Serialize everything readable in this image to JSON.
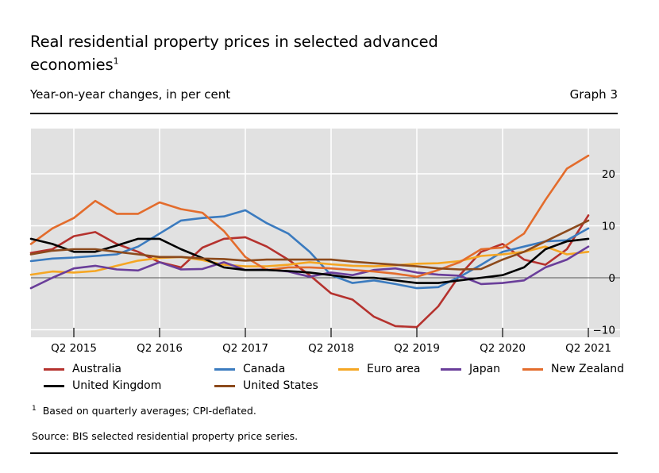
{
  "header": {
    "title": "Real residential property prices in selected advanced economies",
    "title_footnote_marker": "1",
    "subtitle": "Year-on-year changes, in per cent",
    "graph_number": "Graph 3"
  },
  "footer": {
    "footnote_marker": "1",
    "footnote_text": "Based on quarterly averages; CPI-deflated.",
    "source": "Source: BIS selected residential property price series."
  },
  "chart_data": {
    "type": "line",
    "title": "Real residential property prices in selected advanced economies",
    "subtitle": "Year-on-year changes, in per cent",
    "xlabel": "",
    "ylabel": "Year-on-year changes, in per cent",
    "ylim": [
      -11,
      28
    ],
    "yticks": [
      -10,
      0,
      10,
      20
    ],
    "ytick_labels": [
      "−10",
      "0",
      "10",
      "20"
    ],
    "y_axis_side": "right",
    "xtick_labels": [
      "Q2 2015",
      "Q2 2016",
      "Q2 2017",
      "Q2 2018",
      "Q2 2019",
      "Q2 2020",
      "Q2 2021"
    ],
    "xtick_index": [
      2,
      6,
      10,
      14,
      18,
      22,
      26
    ],
    "x": [
      "Q4 2014",
      "Q1 2015",
      "Q2 2015",
      "Q3 2015",
      "Q4 2015",
      "Q1 2016",
      "Q2 2016",
      "Q3 2016",
      "Q4 2016",
      "Q1 2017",
      "Q2 2017",
      "Q3 2017",
      "Q4 2017",
      "Q1 2018",
      "Q2 2018",
      "Q3 2018",
      "Q4 2018",
      "Q1 2019",
      "Q2 2019",
      "Q3 2019",
      "Q4 2019",
      "Q1 2020",
      "Q2 2020",
      "Q3 2020",
      "Q4 2020",
      "Q1 2021",
      "Q2 2021"
    ],
    "grid": true,
    "background": "#e1e1e1",
    "legend_position": "bottom",
    "series": [
      {
        "name": "Australia",
        "color": "#b5322e",
        "values": [
          4.8,
          5.5,
          8.0,
          8.8,
          6.5,
          5.0,
          3.0,
          2.0,
          5.8,
          7.5,
          7.8,
          6.0,
          3.5,
          0.5,
          -3.0,
          -4.2,
          -7.5,
          -9.3,
          -9.5,
          -5.5,
          0.5,
          5.0,
          6.5,
          3.5,
          2.5,
          5.5,
          12.0
        ]
      },
      {
        "name": "Canada",
        "color": "#3b7bbf",
        "values": [
          3.2,
          3.7,
          3.9,
          4.2,
          4.5,
          6.0,
          8.5,
          11.0,
          11.5,
          11.8,
          13.0,
          10.5,
          8.5,
          5.0,
          0.5,
          -1.0,
          -0.5,
          -1.2,
          -2.0,
          -1.8,
          0.2,
          2.5,
          5.0,
          6.0,
          7.0,
          7.2,
          9.5
        ]
      },
      {
        "name": "Euro area",
        "color": "#f5a623",
        "values": [
          0.6,
          1.2,
          1.0,
          1.3,
          2.3,
          3.3,
          3.8,
          4.0,
          3.4,
          2.5,
          2.2,
          2.2,
          2.5,
          3.0,
          2.6,
          2.3,
          2.2,
          2.4,
          2.7,
          2.8,
          3.2,
          4.2,
          4.5,
          5.0,
          6.0,
          4.5,
          5.0
        ]
      },
      {
        "name": "Japan",
        "color": "#6a3e9a",
        "values": [
          -2.0,
          0.0,
          1.8,
          2.3,
          1.6,
          1.4,
          3.0,
          1.6,
          1.7,
          3.0,
          1.5,
          1.6,
          1.2,
          0.2,
          1.0,
          0.5,
          1.5,
          1.8,
          1.0,
          0.6,
          0.4,
          -1.2,
          -1.0,
          -0.5,
          2.0,
          3.5,
          6.0
        ]
      },
      {
        "name": "New Zealand",
        "color": "#e36c2c",
        "values": [
          6.5,
          9.5,
          11.5,
          14.8,
          12.3,
          12.3,
          14.5,
          13.2,
          12.5,
          9.0,
          4.0,
          1.5,
          2.0,
          2.0,
          1.8,
          1.5,
          1.2,
          0.8,
          0.2,
          1.5,
          3.0,
          5.5,
          5.8,
          8.5,
          15.0,
          21.0,
          23.5
        ]
      },
      {
        "name": "United Kingdom",
        "color": "#000000",
        "values": [
          7.5,
          6.5,
          5.0,
          5.0,
          6.2,
          7.5,
          7.5,
          5.5,
          3.8,
          2.0,
          1.5,
          1.5,
          1.3,
          1.0,
          0.5,
          0.0,
          0.0,
          -0.5,
          -1.0,
          -1.0,
          -0.5,
          0.0,
          0.5,
          2.0,
          5.5,
          7.0,
          7.5
        ]
      },
      {
        "name": "United States",
        "color": "#8c4a1c",
        "values": [
          4.5,
          5.2,
          5.5,
          5.5,
          5.0,
          4.5,
          4.0,
          4.0,
          3.7,
          3.6,
          3.3,
          3.5,
          3.5,
          3.5,
          3.5,
          3.1,
          2.8,
          2.5,
          2.2,
          1.8,
          1.6,
          1.7,
          3.5,
          5.0,
          7.0,
          9.0,
          11.0
        ]
      }
    ]
  }
}
